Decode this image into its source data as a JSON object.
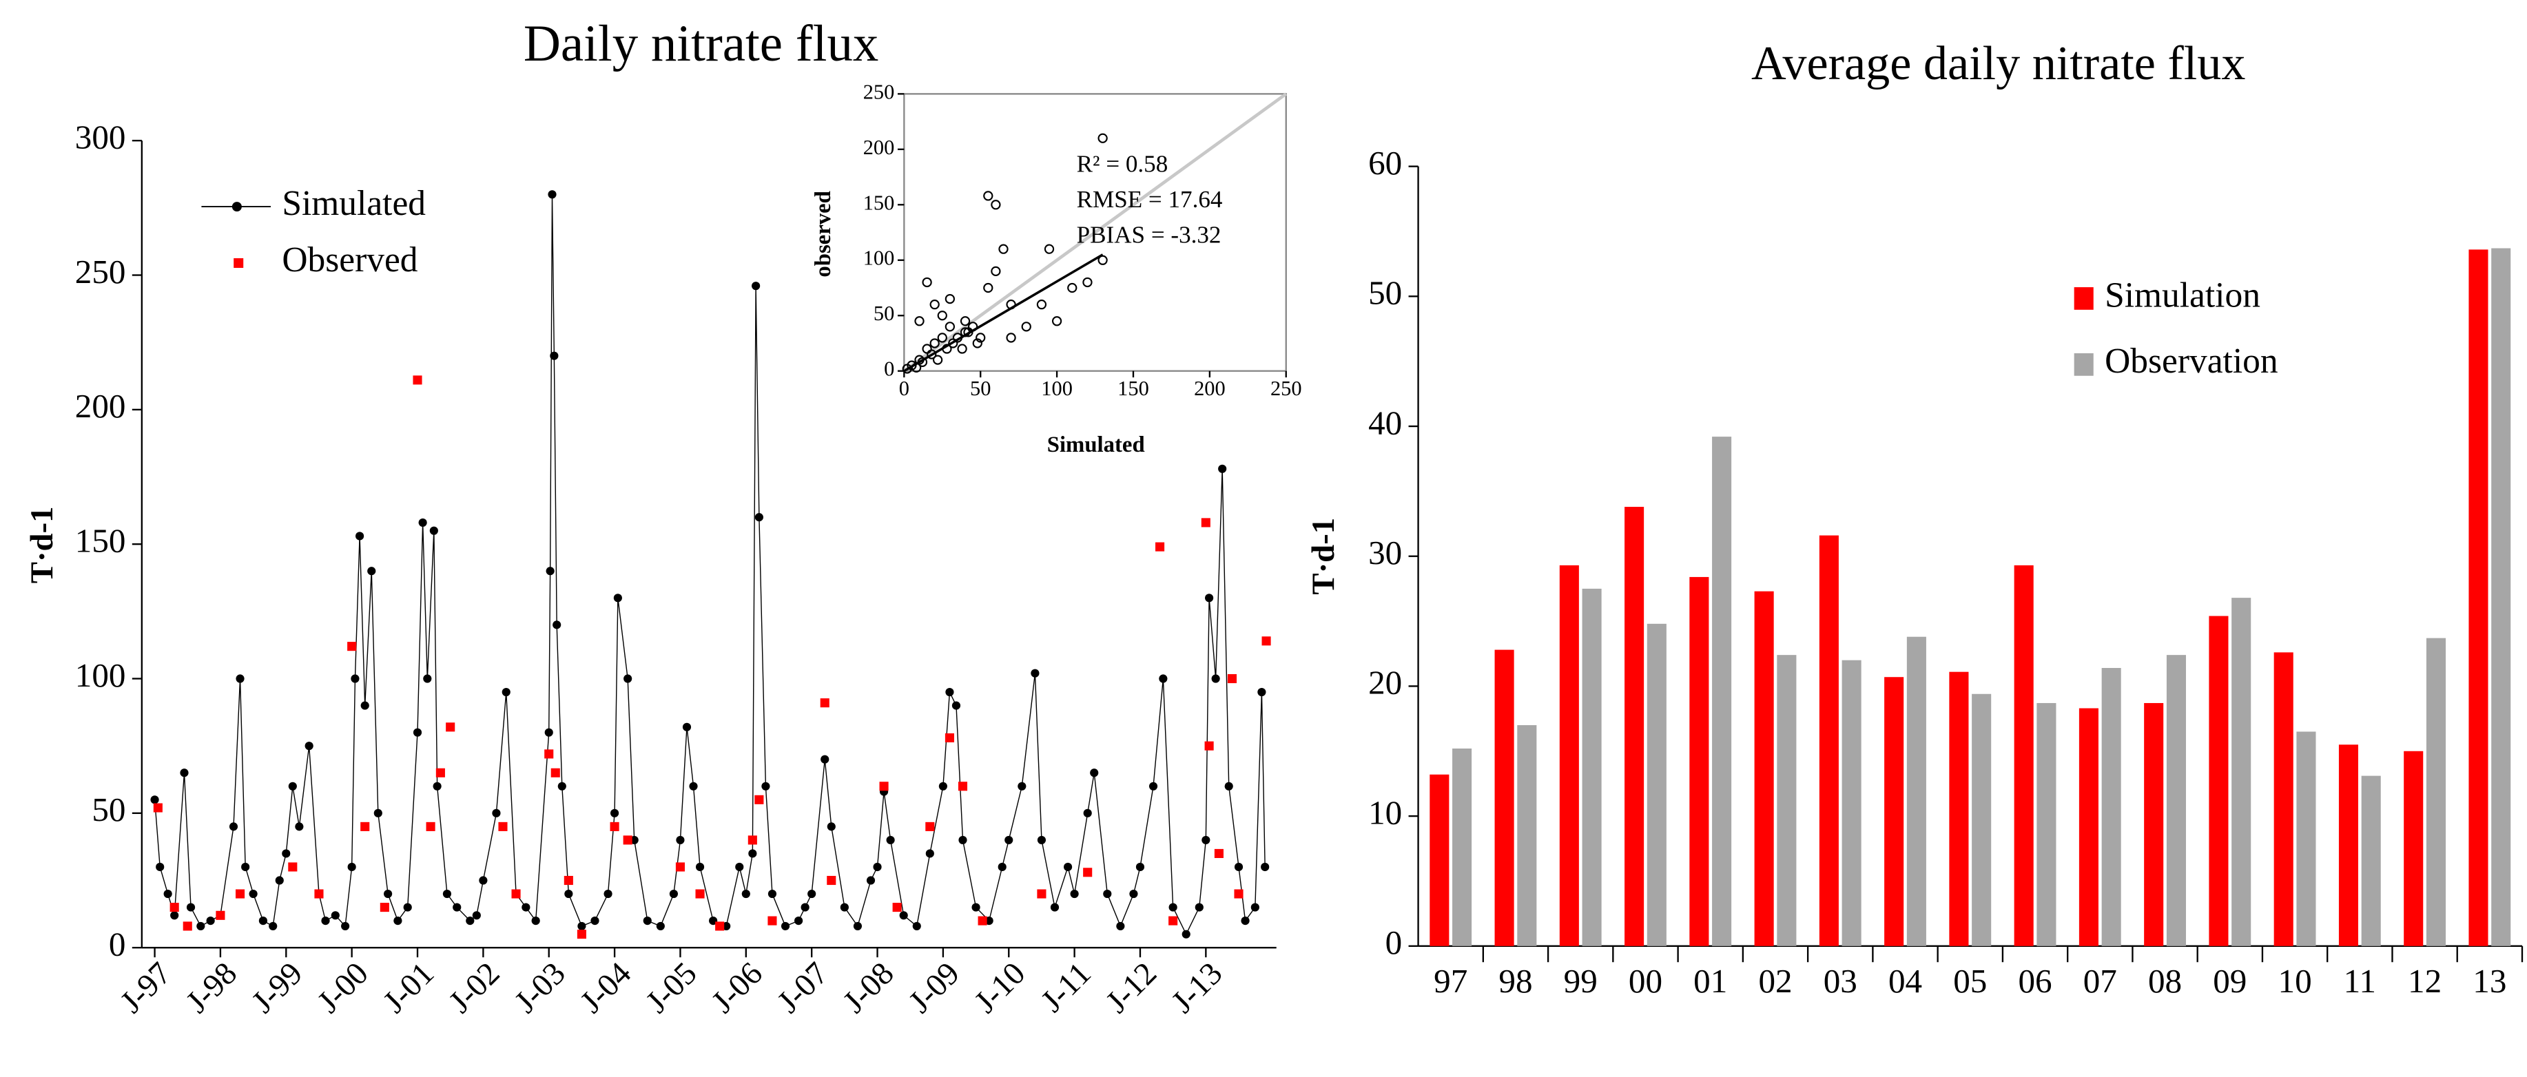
{
  "chart_data": [
    {
      "type": "line",
      "title": "Daily nitrate flux",
      "ylabel": "T·d-1",
      "xlim": [
        1997,
        2014
      ],
      "ylim": [
        0,
        300
      ],
      "yticks": [
        0,
        50,
        100,
        150,
        200,
        250,
        300
      ],
      "xticks": [
        {
          "value": 1997,
          "label": "J-97"
        },
        {
          "value": 1998,
          "label": "J-98"
        },
        {
          "value": 1999,
          "label": "J-99"
        },
        {
          "value": 2000,
          "label": "J-00"
        },
        {
          "value": 2001,
          "label": "J-01"
        },
        {
          "value": 2002,
          "label": "J-02"
        },
        {
          "value": 2003,
          "label": "J-03"
        },
        {
          "value": 2004,
          "label": "J-04"
        },
        {
          "value": 2005,
          "label": "J-05"
        },
        {
          "value": 2006,
          "label": "J-06"
        },
        {
          "value": 2007,
          "label": "J-07"
        },
        {
          "value": 2008,
          "label": "J-08"
        },
        {
          "value": 2009,
          "label": "J-09"
        },
        {
          "value": 2010,
          "label": "J-10"
        },
        {
          "value": 2011,
          "label": "J-11"
        },
        {
          "value": 2012,
          "label": "J-12"
        },
        {
          "value": 2013,
          "label": "J-13"
        }
      ],
      "legend": "upper left",
      "series": [
        {
          "name": "Simulated",
          "color": "#000000",
          "marker": "circle",
          "line": true,
          "x": [
            1997.0,
            1997.08,
            1997.2,
            1997.3,
            1997.45,
            1997.55,
            1997.7,
            1997.85,
            1998.0,
            1998.2,
            1998.3,
            1998.38,
            1998.5,
            1998.65,
            1998.8,
            1998.9,
            1999.0,
            1999.1,
            1999.2,
            1999.35,
            1999.5,
            1999.6,
            1999.75,
            1999.9,
            2000.0,
            2000.05,
            2000.12,
            2000.2,
            2000.3,
            2000.4,
            2000.55,
            2000.7,
            2000.85,
            2001.0,
            2001.08,
            2001.15,
            2001.25,
            2001.3,
            2001.45,
            2001.6,
            2001.8,
            2001.9,
            2002.0,
            2002.2,
            2002.35,
            2002.5,
            2002.65,
            2002.8,
            2003.0,
            2003.02,
            2003.05,
            2003.08,
            2003.12,
            2003.2,
            2003.3,
            2003.5,
            2003.7,
            2003.9,
            2004.0,
            2004.05,
            2004.2,
            2004.3,
            2004.5,
            2004.7,
            2004.9,
            2005.0,
            2005.1,
            2005.2,
            2005.3,
            2005.5,
            2005.7,
            2005.9,
            2006.0,
            2006.1,
            2006.15,
            2006.2,
            2006.3,
            2006.4,
            2006.6,
            2006.8,
            2006.9,
            2007.0,
            2007.2,
            2007.3,
            2007.5,
            2007.7,
            2007.9,
            2008.0,
            2008.1,
            2008.2,
            2008.4,
            2008.6,
            2008.8,
            2009.0,
            2009.1,
            2009.2,
            2009.3,
            2009.5,
            2009.7,
            2009.9,
            2010.0,
            2010.2,
            2010.4,
            2010.5,
            2010.7,
            2010.9,
            2011.0,
            2011.2,
            2011.3,
            2011.5,
            2011.7,
            2011.9,
            2012.0,
            2012.2,
            2012.35,
            2012.5,
            2012.7,
            2012.9,
            2013.0,
            2013.05,
            2013.15,
            2013.25,
            2013.35,
            2013.5,
            2013.6,
            2013.75,
            2013.85,
            2013.9
          ],
          "values": [
            55,
            30,
            20,
            12,
            65,
            15,
            8,
            10,
            12,
            45,
            100,
            30,
            20,
            10,
            8,
            25,
            35,
            60,
            45,
            75,
            20,
            10,
            12,
            8,
            30,
            100,
            153,
            90,
            140,
            50,
            20,
            10,
            15,
            80,
            158,
            100,
            155,
            60,
            20,
            15,
            10,
            12,
            25,
            50,
            95,
            20,
            15,
            10,
            80,
            140,
            280,
            220,
            120,
            60,
            20,
            8,
            10,
            20,
            50,
            130,
            100,
            40,
            10,
            8,
            20,
            40,
            82,
            60,
            30,
            10,
            8,
            30,
            20,
            35,
            246,
            160,
            60,
            20,
            8,
            10,
            15,
            20,
            70,
            45,
            15,
            8,
            25,
            30,
            58,
            40,
            12,
            8,
            35,
            60,
            95,
            90,
            40,
            15,
            10,
            30,
            40,
            60,
            102,
            40,
            15,
            30,
            20,
            50,
            65,
            20,
            8,
            20,
            30,
            60,
            100,
            15,
            5,
            15,
            40,
            130,
            100,
            178,
            60,
            30,
            10,
            15,
            95,
            30
          ]
        },
        {
          "name": "Observed",
          "color": "#ff0000",
          "marker": "square",
          "line": false,
          "x": [
            1997.05,
            1997.3,
            1997.5,
            1998.0,
            1998.3,
            1999.1,
            1999.5,
            2000.0,
            2000.2,
            2000.5,
            2001.0,
            2001.2,
            2001.35,
            2001.5,
            2002.3,
            2002.5,
            2003.0,
            2003.1,
            2003.3,
            2003.5,
            2004.0,
            2004.2,
            2005.0,
            2005.3,
            2005.6,
            2006.1,
            2006.2,
            2006.4,
            2007.2,
            2007.3,
            2008.1,
            2008.3,
            2008.8,
            2009.1,
            2009.3,
            2009.6,
            2010.5,
            2011.2,
            2012.3,
            2012.5,
            2013.0,
            2013.05,
            2013.2,
            2013.4,
            2013.5,
            2013.92
          ],
          "values": [
            52,
            15,
            8,
            12,
            20,
            30,
            20,
            112,
            45,
            15,
            211,
            45,
            65,
            82,
            45,
            20,
            72,
            65,
            25,
            5,
            45,
            40,
            30,
            20,
            8,
            40,
            55,
            10,
            91,
            25,
            60,
            15,
            45,
            78,
            60,
            10,
            20,
            28,
            149,
            10,
            158,
            75,
            35,
            100,
            20,
            114
          ]
        }
      ]
    },
    {
      "type": "scatter",
      "xlabel": "Simulated",
      "ylabel": "observed",
      "xlim": [
        0,
        250
      ],
      "ylim": [
        0,
        250
      ],
      "xticks": [
        0,
        50,
        100,
        150,
        200,
        250
      ],
      "yticks": [
        0,
        50,
        100,
        150,
        200,
        250
      ],
      "annotations": [
        "R² = 0.58",
        "RMSE = 17.64",
        "PBIAS = -3.32"
      ],
      "x": [
        2,
        5,
        8,
        10,
        12,
        15,
        18,
        20,
        22,
        25,
        28,
        30,
        32,
        35,
        38,
        40,
        42,
        45,
        48,
        50,
        55,
        60,
        55,
        60,
        65,
        70,
        80,
        90,
        100,
        95,
        110,
        120,
        130,
        130,
        15,
        20,
        30,
        10,
        25,
        40,
        70
      ],
      "y": [
        2,
        5,
        3,
        10,
        8,
        20,
        15,
        25,
        10,
        30,
        20,
        40,
        25,
        30,
        20,
        45,
        35,
        40,
        25,
        30,
        158,
        150,
        75,
        90,
        110,
        60,
        40,
        60,
        45,
        110,
        75,
        80,
        100,
        210,
        80,
        60,
        65,
        45,
        50,
        35,
        30
      ],
      "fit_line": {
        "x": [
          0,
          130
        ],
        "y": [
          0,
          105
        ]
      },
      "reference_line": {
        "x": [
          0,
          250
        ],
        "y": [
          0,
          250
        ]
      }
    },
    {
      "type": "bar",
      "title": "Average daily nitrate flux",
      "ylabel": "T·d-1",
      "categories": [
        "97",
        "98",
        "99",
        "00",
        "01",
        "02",
        "03",
        "04",
        "05",
        "06",
        "07",
        "08",
        "09",
        "10",
        "11",
        "12",
        "13"
      ],
      "ylim": [
        0,
        60
      ],
      "yticks": [
        0,
        10,
        20,
        30,
        40,
        50,
        60
      ],
      "legend": "upper right",
      "series": [
        {
          "name": "Simulation",
          "color": "#ff0000",
          "values": [
            13.2,
            22.8,
            29.3,
            33.8,
            28.4,
            27.3,
            31.6,
            20.7,
            21.1,
            29.3,
            18.3,
            18.7,
            25.4,
            22.6,
            15.5,
            15.0,
            53.6
          ]
        },
        {
          "name": "Observation",
          "color": "#a6a6a6",
          "values": [
            15.2,
            17.0,
            27.5,
            24.8,
            39.2,
            22.4,
            22.0,
            23.8,
            19.4,
            18.7,
            21.4,
            22.4,
            26.8,
            16.5,
            13.1,
            23.7,
            53.7
          ]
        }
      ]
    }
  ]
}
